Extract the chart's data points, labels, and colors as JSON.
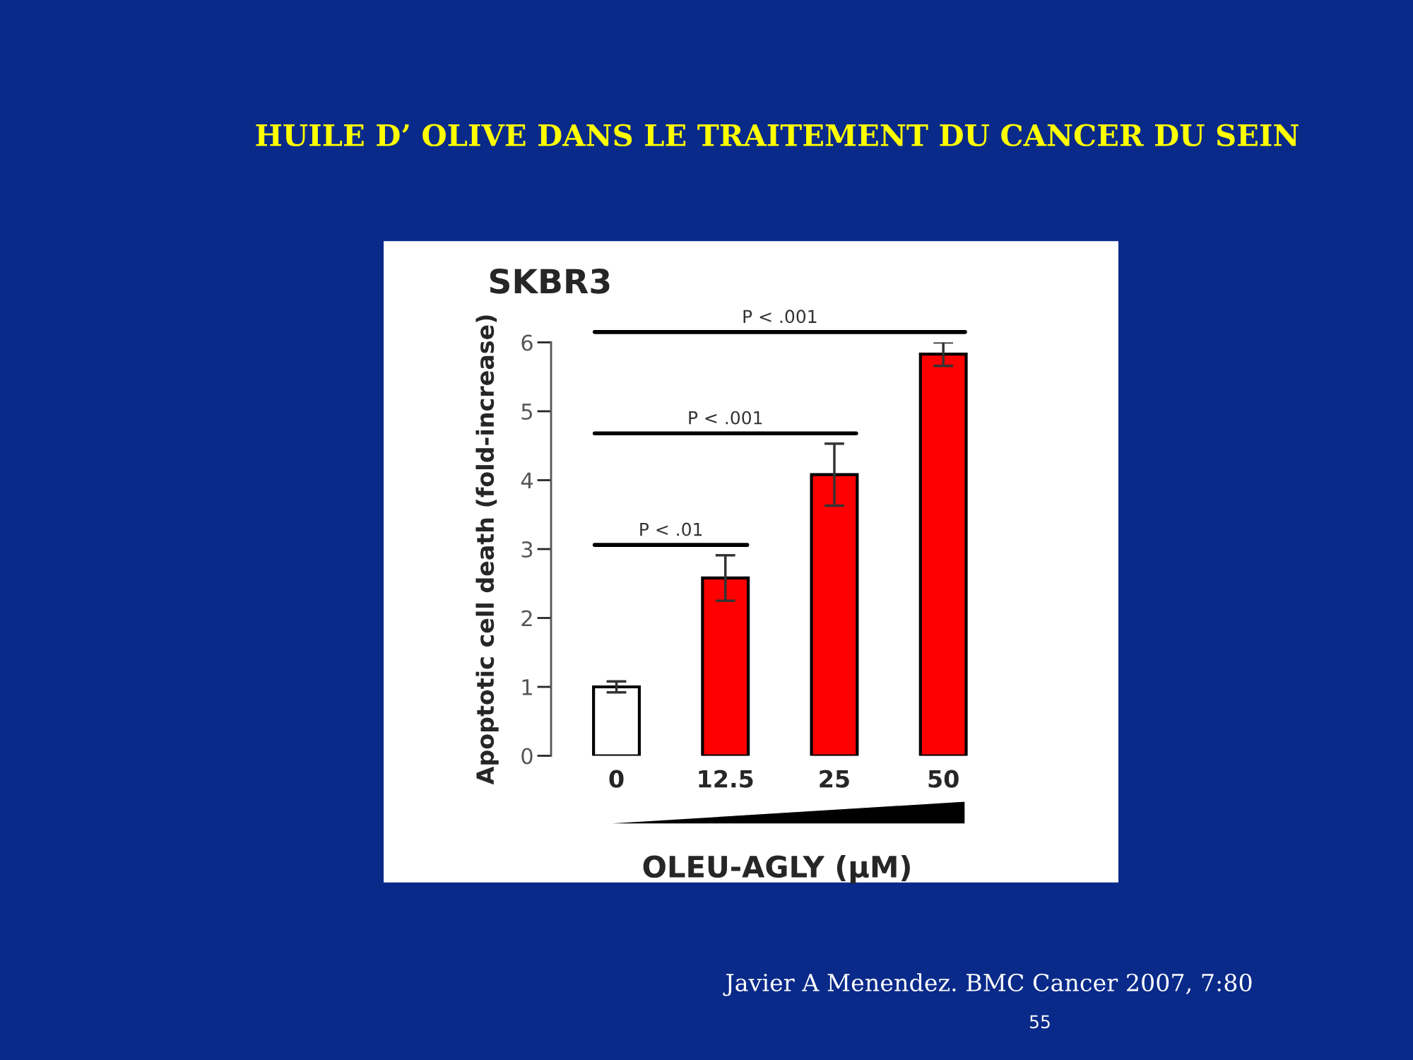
{
  "chart_data": {
    "type": "bar",
    "title": "HUILE D’ OLIVE DANS LE TRAITEMENT DU CANCER DU SEIN",
    "subtitle": "SKBR3",
    "xlabel": "OLEU-AGLY (µM)",
    "ylabel": "Apoptotic cell death (fold-increase)",
    "categories": [
      "0",
      "12.5",
      "25",
      "50"
    ],
    "values": [
      1.0,
      2.58,
      4.08,
      5.83
    ],
    "errors": [
      0.08,
      0.33,
      0.45,
      0.17
    ],
    "colors": [
      "#ffffff",
      "#ff0000",
      "#ff0000",
      "#ff0000"
    ],
    "ylim": [
      0,
      6
    ],
    "yticks": [
      0,
      1,
      2,
      3,
      4,
      5,
      6
    ],
    "grid": false,
    "legend": false,
    "annotations": [
      "P < .01",
      "P < .001",
      "P < .001",
      "Javier A Menendez. BMC Cancer 2007, 7:80",
      "55"
    ]
  }
}
